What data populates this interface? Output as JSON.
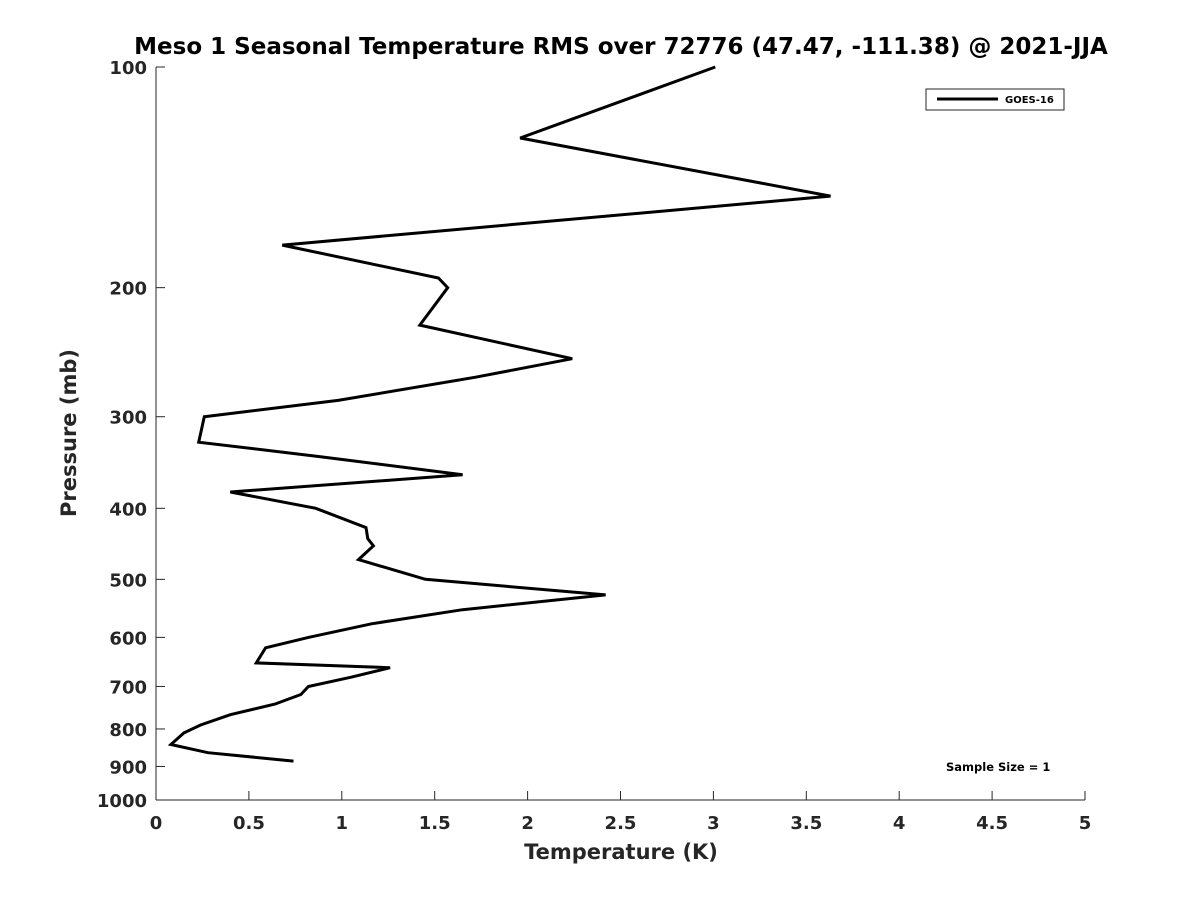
{
  "chart_data": {
    "type": "line",
    "title": "Meso 1 Seasonal Temperature RMS over 72776 (47.47, -111.38) @ 2021-JJA",
    "xlabel": "Temperature (K)",
    "ylabel": "Pressure (mb)",
    "xlim": [
      0,
      5
    ],
    "ylim": [
      100,
      1000
    ],
    "y_scale": "log",
    "y_direction": "reversed",
    "x_ticks": [
      0,
      0.5,
      1,
      1.5,
      2,
      2.5,
      3,
      3.5,
      4,
      4.5,
      5
    ],
    "x_tick_labels": [
      "0",
      "0.5",
      "1",
      "1.5",
      "2",
      "2.5",
      "3",
      "3.5",
      "4",
      "4.5",
      "5"
    ],
    "y_ticks": [
      100,
      200,
      300,
      400,
      500,
      600,
      700,
      800,
      900,
      1000
    ],
    "y_tick_labels": [
      "100",
      "200",
      "300",
      "400",
      "500",
      "600",
      "700",
      "800",
      "900",
      "1000"
    ],
    "grid": false,
    "legend_position": "top-right",
    "annotation": "Sample Size = 1",
    "line_color": "#000000",
    "series": [
      {
        "name": "GOES-16",
        "points": [
          [
            3.01,
            100
          ],
          [
            1.96,
            125
          ],
          [
            3.63,
            150
          ],
          [
            0.68,
            175
          ],
          [
            1.52,
            194
          ],
          [
            1.57,
            200
          ],
          [
            1.42,
            225
          ],
          [
            2.24,
            250
          ],
          [
            1.72,
            265
          ],
          [
            0.98,
            285
          ],
          [
            0.26,
            300
          ],
          [
            0.23,
            325
          ],
          [
            0.88,
            340
          ],
          [
            1.65,
            360
          ],
          [
            0.4,
            380
          ],
          [
            0.86,
            400
          ],
          [
            1.13,
            425
          ],
          [
            1.14,
            440
          ],
          [
            1.17,
            450
          ],
          [
            1.09,
            470
          ],
          [
            1.45,
            500
          ],
          [
            2.42,
            525
          ],
          [
            1.65,
            550
          ],
          [
            1.16,
            575
          ],
          [
            0.82,
            600
          ],
          [
            0.59,
            620
          ],
          [
            0.54,
            650
          ],
          [
            1.26,
            660
          ],
          [
            1.05,
            680
          ],
          [
            0.82,
            700
          ],
          [
            0.78,
            718
          ],
          [
            0.64,
            740
          ],
          [
            0.4,
            765
          ],
          [
            0.24,
            790
          ],
          [
            0.15,
            810
          ],
          [
            0.08,
            840
          ],
          [
            0.28,
            862
          ],
          [
            0.74,
            885
          ]
        ]
      }
    ]
  }
}
